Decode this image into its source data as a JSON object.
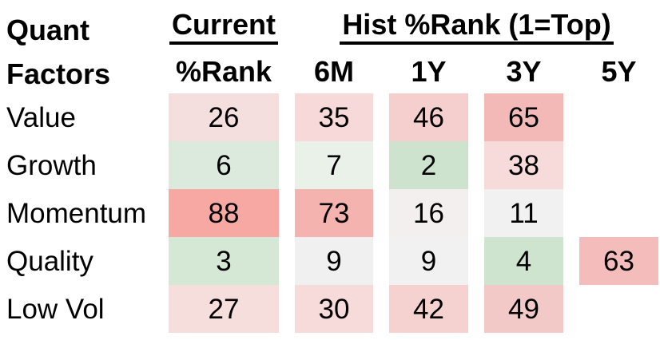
{
  "title": {
    "line1": "Quant",
    "line2": "Factors"
  },
  "headers": {
    "current_group": "Current",
    "hist_group": "Hist %Rank (1=Top)",
    "current_col": "%Rank",
    "hist_cols": [
      "6M",
      "1Y",
      "3Y",
      "5Y"
    ]
  },
  "colors": {
    "background": "#ffffff",
    "text": "#000000",
    "underline": "#000000",
    "scale_low_green": "#cde3ce",
    "scale_mid_white": "#f2f1f1",
    "scale_high_red": "#f7a8a2"
  },
  "rows": [
    {
      "label": "Value",
      "cells": [
        {
          "value": "26",
          "bg": "#f5dfde"
        },
        {
          "value": "35",
          "bg": "#f6d9d8"
        },
        {
          "value": "46",
          "bg": "#f5cfce"
        },
        {
          "value": "65",
          "bg": "#f3b9b7"
        },
        {
          "value": "",
          "bg": null
        }
      ]
    },
    {
      "label": "Growth",
      "cells": [
        {
          "value": "6",
          "bg": "#dceadd"
        },
        {
          "value": "7",
          "bg": "#e9f1e9"
        },
        {
          "value": "2",
          "bg": "#cde3ce"
        },
        {
          "value": "38",
          "bg": "#f6dbda"
        },
        {
          "value": "",
          "bg": null
        }
      ]
    },
    {
      "label": "Momentum",
      "cells": [
        {
          "value": "88",
          "bg": "#f7a8a2"
        },
        {
          "value": "73",
          "bg": "#f5b3b0"
        },
        {
          "value": "16",
          "bg": "#f3efee"
        },
        {
          "value": "11",
          "bg": "#f2f1f1"
        },
        {
          "value": "",
          "bg": null
        }
      ]
    },
    {
      "label": "Quality",
      "cells": [
        {
          "value": "3",
          "bg": "#d5e7d5"
        },
        {
          "value": "9",
          "bg": "#f1f0f0"
        },
        {
          "value": "9",
          "bg": "#f2f1f1"
        },
        {
          "value": "4",
          "bg": "#cfe4cf"
        },
        {
          "value": "63",
          "bg": "#f4bcba"
        }
      ]
    },
    {
      "label": "Low Vol",
      "cells": [
        {
          "value": "27",
          "bg": "#f6dedd"
        },
        {
          "value": "30",
          "bg": "#f6dbda"
        },
        {
          "value": "42",
          "bg": "#f5d1d0"
        },
        {
          "value": "49",
          "bg": "#f3c9c8"
        },
        {
          "value": "",
          "bg": null
        }
      ]
    }
  ],
  "chart_data": {
    "type": "heatmap",
    "title": "Quant Factors",
    "column_groups": [
      {
        "label": "Current",
        "columns": [
          "%Rank"
        ]
      },
      {
        "label": "Hist %Rank (1=Top)",
        "columns": [
          "6M",
          "1Y",
          "3Y",
          "5Y"
        ]
      }
    ],
    "columns": [
      "%Rank",
      "6M",
      "1Y",
      "3Y",
      "5Y"
    ],
    "row_labels": [
      "Value",
      "Growth",
      "Momentum",
      "Quality",
      "Low Vol"
    ],
    "values": [
      [
        26,
        35,
        46,
        65,
        null
      ],
      [
        6,
        7,
        2,
        38,
        null
      ],
      [
        88,
        73,
        16,
        11,
        null
      ],
      [
        3,
        9,
        9,
        4,
        63
      ],
      [
        27,
        30,
        42,
        49,
        null
      ]
    ],
    "legend": "1=Top",
    "color_scale": {
      "low": "green (best rank)",
      "mid": "white",
      "high": "red (worst rank)"
    },
    "layout": {
      "grid": false,
      "blank_cells": "5Y column empty except Quality"
    }
  }
}
